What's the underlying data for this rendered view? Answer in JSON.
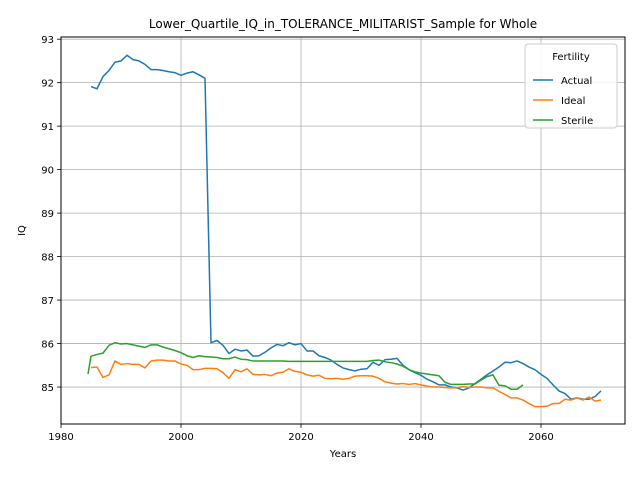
{
  "chart_data": {
    "type": "line",
    "title": "Lower_Quartile_IQ_in_TOLERANCE_MILITARIST_Sample for Whole",
    "xlabel": "Years",
    "ylabel": "IQ",
    "xlim": [
      1980,
      2074
    ],
    "ylim": [
      84.15,
      93.05
    ],
    "xticks": [
      1980,
      2000,
      2020,
      2040,
      2060
    ],
    "yticks": [
      85,
      86,
      87,
      88,
      89,
      90,
      91,
      92,
      93
    ],
    "grid": true,
    "legend": {
      "title": "Fertility",
      "position": "top-right"
    },
    "series": [
      {
        "name": "Actual",
        "color": "#1f77b4",
        "x": [
          1985,
          1986,
          1987,
          1988,
          1989,
          1990,
          1991,
          1992,
          1993,
          1994,
          1995,
          1996,
          1997,
          1998,
          1999,
          2000,
          2001,
          2002,
          2003,
          2004,
          2005,
          2006,
          2007,
          2008,
          2009,
          2010,
          2011,
          2012,
          2013,
          2014,
          2015,
          2016,
          2017,
          2018,
          2019,
          2020,
          2021,
          2022,
          2023,
          2024,
          2025,
          2026,
          2027,
          2028,
          2029,
          2030,
          2031,
          2032,
          2033,
          2034,
          2035,
          2036,
          2037,
          2038,
          2039,
          2040,
          2041,
          2042,
          2043,
          2044,
          2045,
          2046,
          2047,
          2048,
          2049,
          2050,
          2051,
          2052,
          2053,
          2054,
          2055,
          2056,
          2057,
          2058,
          2059,
          2060,
          2061,
          2062,
          2063,
          2064,
          2065,
          2066,
          2067,
          2068,
          2069,
          2070
        ],
        "values": [
          91.91,
          91.86,
          92.14,
          92.28,
          92.47,
          92.5,
          92.63,
          92.53,
          92.5,
          92.42,
          92.3,
          92.3,
          92.28,
          92.25,
          92.23,
          92.17,
          92.22,
          92.25,
          92.18,
          92.1,
          86.02,
          86.07,
          85.96,
          85.77,
          85.87,
          85.83,
          85.85,
          85.71,
          85.72,
          85.8,
          85.9,
          85.98,
          85.95,
          86.02,
          85.97,
          86.0,
          85.83,
          85.83,
          85.72,
          85.68,
          85.62,
          85.52,
          85.44,
          85.4,
          85.37,
          85.41,
          85.42,
          85.57,
          85.5,
          85.63,
          85.64,
          85.66,
          85.5,
          85.4,
          85.33,
          85.27,
          85.18,
          85.12,
          85.05,
          85.05,
          85.0,
          84.98,
          84.93,
          84.98,
          85.08,
          85.18,
          85.28,
          85.37,
          85.46,
          85.57,
          85.56,
          85.6,
          85.54,
          85.46,
          85.4,
          85.29,
          85.2,
          85.05,
          84.91,
          84.85,
          84.72,
          84.75,
          84.72,
          84.72,
          84.78,
          84.91
        ]
      },
      {
        "name": "Ideal",
        "color": "#ff7f0e",
        "x": [
          1985,
          1986,
          1987,
          1988,
          1989,
          1990,
          1991,
          1992,
          1993,
          1994,
          1995,
          1996,
          1997,
          1998,
          1999,
          2000,
          2001,
          2002,
          2003,
          2004,
          2005,
          2006,
          2007,
          2008,
          2009,
          2010,
          2011,
          2012,
          2013,
          2014,
          2015,
          2016,
          2017,
          2018,
          2019,
          2020,
          2021,
          2022,
          2023,
          2024,
          2025,
          2026,
          2027,
          2028,
          2029,
          2030,
          2031,
          2032,
          2033,
          2034,
          2035,
          2036,
          2037,
          2038,
          2039,
          2040,
          2041,
          2042,
          2043,
          2044,
          2045,
          2046,
          2047,
          2048,
          2049,
          2050,
          2051,
          2052,
          2053,
          2054,
          2055,
          2056,
          2057,
          2058,
          2059,
          2060,
          2061,
          2062,
          2063,
          2064,
          2065,
          2066,
          2067,
          2068,
          2069,
          2070
        ],
        "values": [
          85.45,
          85.46,
          85.22,
          85.28,
          85.6,
          85.52,
          85.54,
          85.52,
          85.52,
          85.44,
          85.6,
          85.62,
          85.62,
          85.6,
          85.6,
          85.53,
          85.5,
          85.4,
          85.4,
          85.43,
          85.43,
          85.42,
          85.33,
          85.2,
          85.4,
          85.35,
          85.42,
          85.29,
          85.28,
          85.29,
          85.26,
          85.32,
          85.34,
          85.42,
          85.36,
          85.34,
          85.28,
          85.25,
          85.27,
          85.2,
          85.19,
          85.2,
          85.18,
          85.2,
          85.25,
          85.26,
          85.26,
          85.25,
          85.2,
          85.12,
          85.09,
          85.07,
          85.08,
          85.06,
          85.08,
          85.05,
          85.02,
          85.0,
          85.0,
          84.99,
          84.98,
          84.98,
          85.01,
          84.99,
          85.0,
          85.0,
          84.98,
          84.98,
          84.9,
          84.83,
          84.75,
          84.75,
          84.7,
          84.62,
          84.55,
          84.55,
          84.56,
          84.62,
          84.62,
          84.72,
          84.7,
          84.75,
          84.7,
          84.77,
          84.68,
          84.7
        ]
      },
      {
        "name": "Sterile",
        "color": "#2ca02c",
        "x": [
          1984.5,
          1985,
          1986,
          1987,
          1988,
          1989,
          1990,
          1991,
          1992,
          1993,
          1994,
          1995,
          1996,
          1997,
          1998,
          1999,
          2000,
          2001,
          2002,
          2003,
          2004,
          2005,
          2006,
          2007,
          2008,
          2009,
          2010,
          2011,
          2012,
          2013,
          2014,
          2015,
          2016,
          2017,
          2018,
          2019,
          2020,
          2021,
          2022,
          2023,
          2024,
          2025,
          2026,
          2027,
          2028,
          2029,
          2030,
          2031,
          2032,
          2033,
          2034,
          2035,
          2036,
          2037,
          2038,
          2039,
          2040,
          2041,
          2042,
          2043,
          2044,
          2045,
          2046,
          2047,
          2048,
          2049,
          2050,
          2051,
          2052,
          2053,
          2054,
          2055,
          2056,
          2057
        ],
        "values": [
          85.3,
          85.71,
          85.75,
          85.78,
          85.96,
          86.02,
          85.99,
          86.0,
          85.97,
          85.94,
          85.91,
          85.97,
          85.97,
          85.92,
          85.88,
          85.84,
          85.79,
          85.72,
          85.68,
          85.72,
          85.7,
          85.69,
          85.68,
          85.65,
          85.65,
          85.69,
          85.64,
          85.63,
          85.6,
          85.6,
          85.6,
          85.6,
          85.6,
          85.6,
          85.59,
          85.59,
          85.59,
          85.59,
          85.59,
          85.59,
          85.59,
          85.59,
          85.59,
          85.59,
          85.59,
          85.59,
          85.59,
          85.59,
          85.61,
          85.62,
          85.58,
          85.56,
          85.53,
          85.48,
          85.4,
          85.35,
          85.32,
          85.3,
          85.28,
          85.26,
          85.11,
          85.06,
          85.06,
          85.06,
          85.07,
          85.07,
          85.16,
          85.24,
          85.28,
          85.04,
          85.03,
          84.95,
          84.95,
          85.05
        ]
      }
    ]
  }
}
